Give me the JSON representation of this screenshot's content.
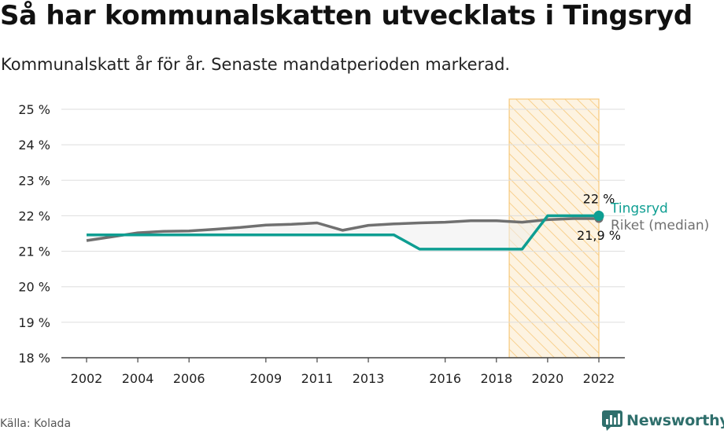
{
  "title": "Så har kommunalskatten utvecklats i Tingsryd",
  "subtitle": "Kommunalskatt år för år. Senaste mandatperioden markerad.",
  "source": "Källa: Kolada",
  "brand": "Newsworthy",
  "colors": {
    "tingsryd": "#0e9e92",
    "riket": "#707070",
    "highlight_stroke": "#f7c87a",
    "highlight_fill": "#fdf3e1",
    "grid": "#dddddd",
    "brand": "#2f6f6c"
  },
  "chart_data": {
    "type": "line",
    "title": "Så har kommunalskatten utvecklats i Tingsryd",
    "xlabel": "",
    "ylabel": "",
    "ylim": [
      18,
      25
    ],
    "yticks": [
      18,
      19,
      20,
      21,
      22,
      23,
      24,
      25
    ],
    "y_tick_labels": [
      "18 %",
      "19 %",
      "20 %",
      "21 %",
      "22 %",
      "23 %",
      "24 %",
      "25 %"
    ],
    "xlim": [
      2002,
      2022
    ],
    "xticks": [
      2002,
      2004,
      2006,
      2009,
      2011,
      2013,
      2016,
      2018,
      2020,
      2022
    ],
    "x_tick_labels": [
      "2002",
      "2004",
      "2006",
      "2009",
      "2011",
      "2013",
      "2016",
      "2018",
      "2020",
      "2022"
    ],
    "highlight_period": [
      2018.5,
      2022
    ],
    "x": [
      2002,
      2003,
      2004,
      2005,
      2006,
      2007,
      2008,
      2009,
      2010,
      2011,
      2012,
      2013,
      2014,
      2015,
      2016,
      2017,
      2018,
      2019,
      2020,
      2021,
      2022
    ],
    "series": [
      {
        "name": "Tingsryd",
        "values": [
          21.46,
          21.46,
          21.46,
          21.46,
          21.46,
          21.46,
          21.46,
          21.46,
          21.46,
          21.46,
          21.46,
          21.46,
          21.46,
          21.06,
          21.06,
          21.06,
          21.06,
          21.06,
          22.0,
          22.0,
          22.0
        ],
        "end_value_label": "22 %",
        "legend_label": "Tingsryd"
      },
      {
        "name": "Riket (median)",
        "values": [
          21.3,
          21.41,
          21.52,
          21.56,
          21.57,
          21.62,
          21.67,
          21.74,
          21.76,
          21.8,
          21.59,
          21.73,
          21.77,
          21.8,
          21.82,
          21.86,
          21.86,
          21.82,
          21.89,
          21.92,
          21.92
        ],
        "end_value_label": "21,9 %",
        "legend_label": "Riket (median)"
      }
    ]
  }
}
